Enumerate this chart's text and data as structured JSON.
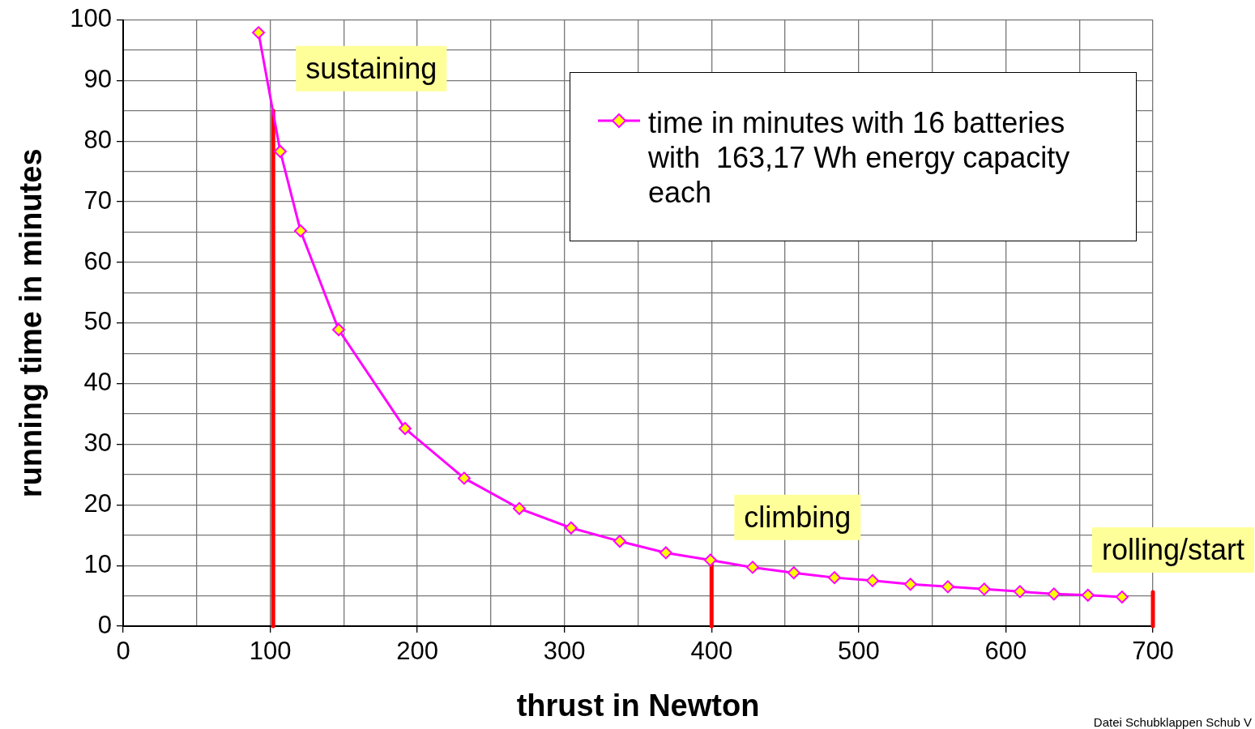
{
  "chart_data": {
    "type": "line",
    "xlabel": "thrust in Newton",
    "ylabel": "running time in minutes",
    "xlim": [
      0,
      700
    ],
    "ylim": [
      0,
      100
    ],
    "xticks": [
      0,
      {
        "value": 50,
        "label": null
      },
      100,
      {
        "value": 150,
        "label": null
      },
      200,
      {
        "value": 250,
        "label": null
      },
      300,
      {
        "value": 350,
        "label": null
      },
      400,
      {
        "value": 450,
        "label": null
      },
      500,
      {
        "value": 550,
        "label": null
      },
      600,
      {
        "value": 650,
        "label": null
      },
      700
    ],
    "yticks": [
      0,
      {
        "value": 5,
        "label": null
      },
      10,
      {
        "value": 15,
        "label": null
      },
      20,
      {
        "value": 25,
        "label": null
      },
      30,
      {
        "value": 35,
        "label": null
      },
      40,
      {
        "value": 45,
        "label": null
      },
      50,
      {
        "value": 55,
        "label": null
      },
      60,
      {
        "value": 65,
        "label": null
      },
      70,
      {
        "value": 75,
        "label": null
      },
      80,
      {
        "value": 85,
        "label": null
      },
      90,
      {
        "value": 95,
        "label": null
      },
      100
    ],
    "grid": true,
    "legend": "top right",
    "line_style": "solid",
    "series": [
      {
        "name": "time in minutes with 16 batteries with  163,17 Wh energy capacity each",
        "color": "#ff00ff",
        "marker": "diamond",
        "x": [
          92,
          106.8,
          120.6,
          146.5,
          191.6,
          231.8,
          269.3,
          304.5,
          337.6,
          368.9,
          399.2,
          427.9,
          455.9,
          483.5,
          509.4,
          535.2,
          560.6,
          585.3,
          609.6,
          632.7,
          655.8,
          679
        ],
        "values": [
          97.9,
          78.3,
          65.2,
          48.9,
          32.6,
          24.4,
          19.4,
          16.2,
          14.0,
          12.1,
          10.9,
          9.7,
          8.8,
          8.0,
          7.5,
          6.9,
          6.5,
          6.1,
          5.7,
          5.3,
          5.1,
          4.8
        ]
      },
      {
        "color": "#ff0000",
        "marker": "none",
        "x": [
          102,
          102
        ],
        "values": [
          0,
          85
        ]
      },
      {
        "color": "#ff0000",
        "marker": "none",
        "x": [
          400,
          400
        ],
        "values": [
          0,
          11
        ]
      },
      {
        "color": "#ff0000",
        "marker": "none",
        "x": [
          700,
          700
        ],
        "values": [
          0,
          5.6
        ]
      }
    ],
    "annotations": [
      {
        "text": "sustaining",
        "x": 102,
        "y": 85
      },
      {
        "text": "climbing",
        "x": 400,
        "y": 11
      },
      {
        "text": "rolling/start",
        "x": 700,
        "y": 5.6
      },
      "Datei Schubklappen Schub V"
    ]
  }
}
